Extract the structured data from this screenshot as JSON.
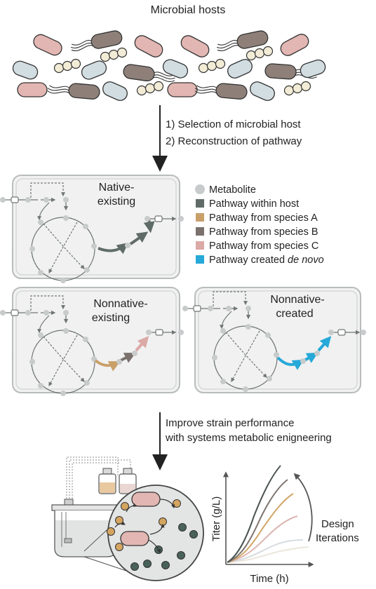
{
  "hosts": {
    "title": "Microbial hosts"
  },
  "steps": {
    "step1": "1) Selection of microbial host",
    "step2": "2) Reconstruction of pathway",
    "improve_line1": "Improve strain performance",
    "improve_line2": "with systems metabolic enigneering"
  },
  "cells": {
    "native": {
      "line1": "Native-",
      "line2": "existing"
    },
    "nonnative_existing": {
      "line1": "Nonnative-",
      "line2": "existing"
    },
    "nonnative_created": {
      "line1": "Nonnative-",
      "line2": "created"
    }
  },
  "legend": {
    "items": [
      {
        "label": "Metabolite",
        "color": "#c8cbcb",
        "shape": "circle"
      },
      {
        "label": "Pathway within host",
        "color": "#5f6b67",
        "shape": "square"
      },
      {
        "label": "Pathway from species A",
        "color": "#c9a06a",
        "shape": "square"
      },
      {
        "label": "Pathway from species B",
        "color": "#7b716c",
        "shape": "square"
      },
      {
        "label": "Pathway from species C",
        "color": "#dba9a6",
        "shape": "square"
      },
      {
        "label": "Pathway created ",
        "label_em": "de novo",
        "color": "#26a9d8",
        "shape": "square"
      }
    ]
  },
  "plot": {
    "ylabel": "Titer (g/L)",
    "xlabel": "Time (h)",
    "annotation_line1": "Design",
    "annotation_line2": "Iterations"
  },
  "colors": {
    "host_pink": "#e2b6b2",
    "host_blue": "#d2dde2",
    "host_brown": "#8e8079",
    "host_cream": "#f2ecd6",
    "cell_fill": "#f1f1f1",
    "cell_border": "#b9bcbd",
    "metabolite": "#c8cbcb",
    "arrow_dark": "#222222"
  }
}
